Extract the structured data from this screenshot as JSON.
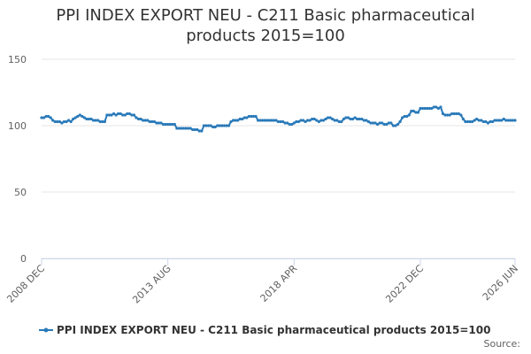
{
  "chart_data": {
    "type": "line",
    "title": "PPI INDEX EXPORT NEU - C211 Basic pharmaceutical products 2015=100",
    "source": "Source:",
    "categories": [
      "2008 DEC",
      null,
      null,
      null,
      null,
      null,
      null,
      null,
      null,
      null,
      null,
      null,
      null,
      null,
      null,
      null,
      null,
      null,
      null,
      null,
      null,
      null,
      null,
      null,
      null,
      null,
      null,
      null,
      null,
      null,
      null,
      null,
      null,
      null,
      null,
      null,
      null,
      null,
      null,
      null,
      null,
      null,
      null,
      null,
      null,
      null,
      null,
      null,
      null,
      null,
      null,
      null,
      null,
      null,
      null,
      null,
      "2013 AUG",
      null,
      null,
      null,
      null,
      null,
      null,
      null,
      null,
      null,
      null,
      null,
      null,
      null,
      null,
      null,
      null,
      null,
      null,
      null,
      null,
      null,
      null,
      null,
      null,
      null,
      null,
      null,
      null,
      null,
      null,
      null,
      null,
      null,
      null,
      null,
      null,
      null,
      null,
      null,
      null,
      null,
      null,
      null,
      null,
      null,
      null,
      null,
      null,
      null,
      null,
      null,
      null,
      null,
      null,
      null,
      "2018 APR",
      null,
      null,
      null,
      null,
      null,
      null,
      null,
      null,
      null,
      null,
      null,
      null,
      null,
      null,
      null,
      null,
      null,
      null,
      null,
      null,
      null,
      null,
      null,
      null,
      null,
      null,
      null,
      null,
      null,
      null,
      null,
      null,
      null,
      null,
      null,
      null,
      null,
      null,
      null,
      null,
      null,
      null,
      null,
      null,
      null,
      null,
      null,
      null,
      null,
      null,
      null,
      null,
      null,
      null,
      null,
      "2022 DEC",
      null,
      null,
      null,
      null,
      null,
      null,
      null,
      null,
      null,
      null,
      null,
      null,
      null,
      null,
      null,
      null,
      null,
      null,
      null,
      null,
      null,
      null,
      null,
      null,
      null,
      null,
      null,
      null,
      null,
      null,
      null,
      null,
      null,
      null,
      null,
      null,
      null,
      null,
      null,
      null,
      null,
      "2026 JUN"
    ],
    "series": [
      {
        "name": "PPI INDEX EXPORT NEU - C211 Basic pharmaceutical products 2015=100",
        "color": "#2a7ab9",
        "values": [
          106,
          106,
          107,
          107,
          106,
          104,
          103,
          103,
          103,
          102,
          103,
          103,
          104,
          103,
          105,
          106,
          107,
          108,
          107,
          106,
          105,
          105,
          105,
          104,
          104,
          104,
          103,
          103,
          103,
          108,
          108,
          108,
          109,
          108,
          109,
          109,
          108,
          108,
          109,
          109,
          108,
          108,
          106,
          105,
          105,
          104,
          104,
          104,
          103,
          103,
          103,
          102,
          102,
          102,
          101,
          101,
          101,
          101,
          101,
          101,
          98,
          98,
          98,
          98,
          98,
          98,
          98,
          97,
          97,
          97,
          96,
          96,
          100,
          100,
          100,
          100,
          99,
          99,
          100,
          100,
          100,
          100,
          100,
          100,
          103,
          104,
          104,
          104,
          105,
          105,
          106,
          106,
          107,
          107,
          107,
          107,
          104,
          104,
          104,
          104,
          104,
          104,
          104,
          104,
          104,
          103,
          103,
          103,
          102,
          102,
          101,
          101,
          102,
          103,
          103,
          104,
          104,
          103,
          104,
          104,
          105,
          105,
          104,
          103,
          104,
          104,
          105,
          106,
          106,
          105,
          104,
          104,
          103,
          103,
          105,
          106,
          106,
          105,
          105,
          106,
          105,
          105,
          105,
          104,
          104,
          103,
          102,
          102,
          102,
          101,
          102,
          102,
          101,
          101,
          102,
          102,
          100,
          100,
          101,
          103,
          106,
          107,
          107,
          108,
          111,
          111,
          110,
          110,
          113,
          113,
          113,
          113,
          113,
          113,
          114,
          114,
          113,
          114,
          109,
          108,
          108,
          108,
          109,
          109,
          109,
          109,
          108,
          105,
          103,
          103,
          103,
          103,
          104,
          105,
          104,
          104,
          103,
          103,
          102,
          103,
          103,
          104,
          104,
          104,
          104,
          105,
          104,
          104,
          104,
          104,
          104
        ]
      }
    ],
    "ylim": [
      0,
      150
    ],
    "yticks": [
      0,
      50,
      100,
      150
    ],
    "grid": true
  }
}
